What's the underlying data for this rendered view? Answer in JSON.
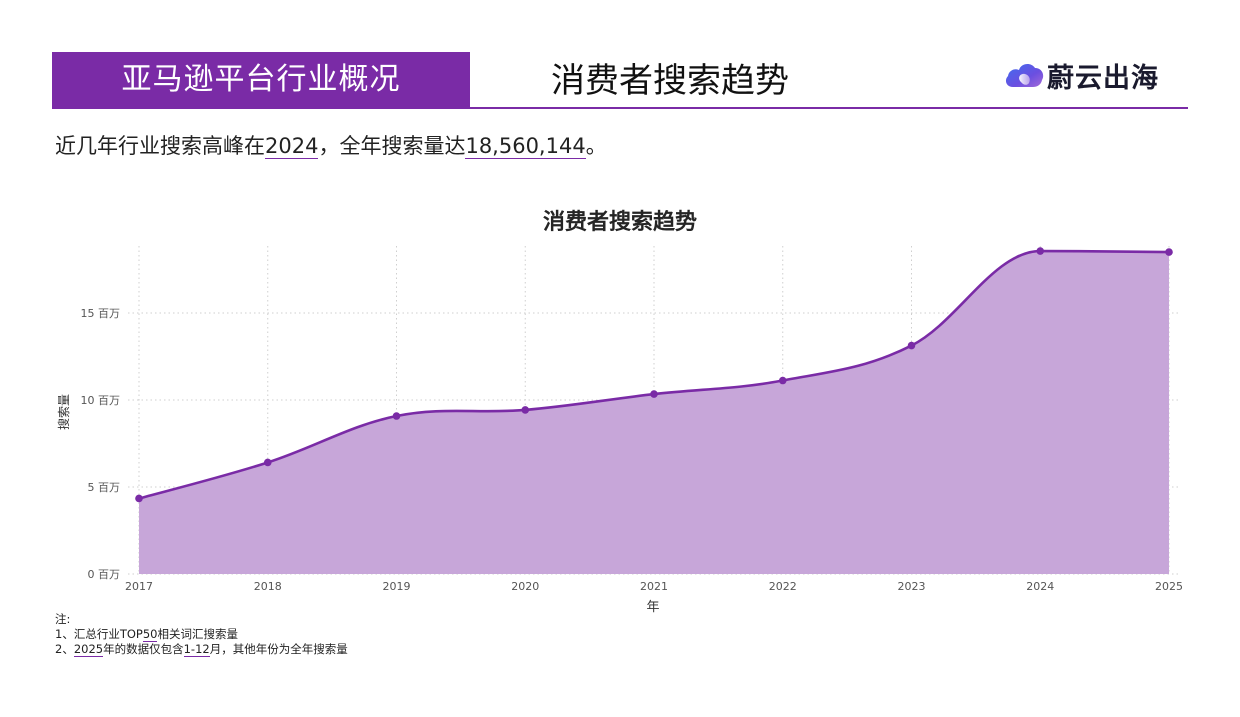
{
  "header": {
    "section_label": "亚马逊平台行业概况",
    "title": "消费者搜索趋势",
    "logo_text": "蔚云出海",
    "logo_icon": "cloud-icon",
    "accent_color": "#7a2ba6"
  },
  "summary": {
    "prefix": "近几年行业搜索高峰在",
    "peak_year": "2024",
    "middle": "，全年搜索量达",
    "peak_value": "18,560,144",
    "suffix": "。"
  },
  "chart_data": {
    "type": "area",
    "title": "消费者搜索趋势",
    "xlabel": "年",
    "ylabel": "搜索量",
    "categories": [
      "2017",
      "2018",
      "2019",
      "2020",
      "2021",
      "2022",
      "2023",
      "2024",
      "2025"
    ],
    "series": [
      {
        "name": "搜索量",
        "values": [
          4340000,
          6410000,
          9080000,
          9430000,
          10340000,
          11120000,
          13130000,
          18560144,
          18500000
        ],
        "line_color": "#7a2ba6",
        "fill_color": "#c7a6d9"
      }
    ],
    "yticks": [
      0,
      5000000,
      10000000,
      15000000
    ],
    "ytick_labels": [
      "0 百万",
      "5 百万",
      "10 百万",
      "15 百万"
    ],
    "ylim": [
      0,
      18800000
    ],
    "grid": true,
    "legend": "none"
  },
  "notes": {
    "heading": "注:",
    "line1_prefix": "1、汇总行业TOP",
    "line1_ul": "50",
    "line1_suffix": "相关词汇搜索量",
    "line2_prefix": "2、",
    "line2_ul1": "2025",
    "line2_mid": "年的数据仅包含",
    "line2_ul2": "1-12",
    "line2_suffix": "月，其他年份为全年搜索量"
  }
}
